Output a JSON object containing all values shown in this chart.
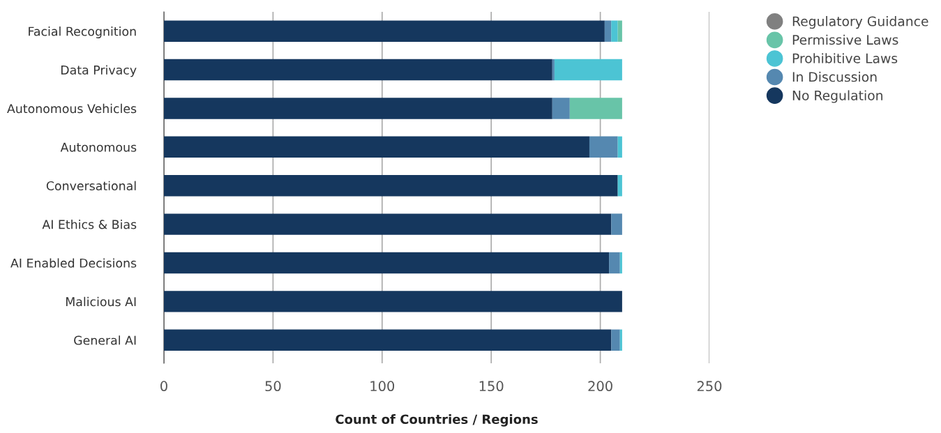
{
  "chart_data": {
    "type": "bar",
    "orientation": "horizontal",
    "stacked": true,
    "xlabel": "Count of Countries / Regions",
    "categories": [
      "Facial Recognition",
      "Data Privacy",
      "Autonomous Vehicles",
      "Autonomous",
      "Conversational",
      "AI Ethics & Bias",
      "AI Enabled Decisions",
      "Malicious AI",
      "General AI"
    ],
    "series": [
      {
        "name": "No Regulation",
        "color": "#15375e",
        "values": [
          202,
          178,
          178,
          195,
          208,
          205,
          204,
          210,
          205
        ]
      },
      {
        "name": "In Discussion",
        "color": "#5588b0",
        "values": [
          3,
          1,
          8,
          13,
          0,
          5,
          5,
          0,
          4
        ]
      },
      {
        "name": "Prohibitive Laws",
        "color": "#4cc4d4",
        "values": [
          3,
          31,
          0,
          2,
          2,
          0,
          1,
          0,
          1
        ]
      },
      {
        "name": "Permissive Laws",
        "color": "#68c4a8",
        "values": [
          2,
          0,
          24,
          0,
          0,
          0,
          0,
          0,
          0
        ]
      },
      {
        "name": "Regulatory Guidance",
        "color": "#808080",
        "values": [
          0,
          0,
          0,
          0,
          0,
          0,
          0,
          0,
          0
        ]
      }
    ],
    "xlim": [
      0,
      250
    ],
    "xticks": [
      0,
      50,
      100,
      150,
      200,
      250
    ],
    "grid": "x",
    "legend": "top right"
  }
}
